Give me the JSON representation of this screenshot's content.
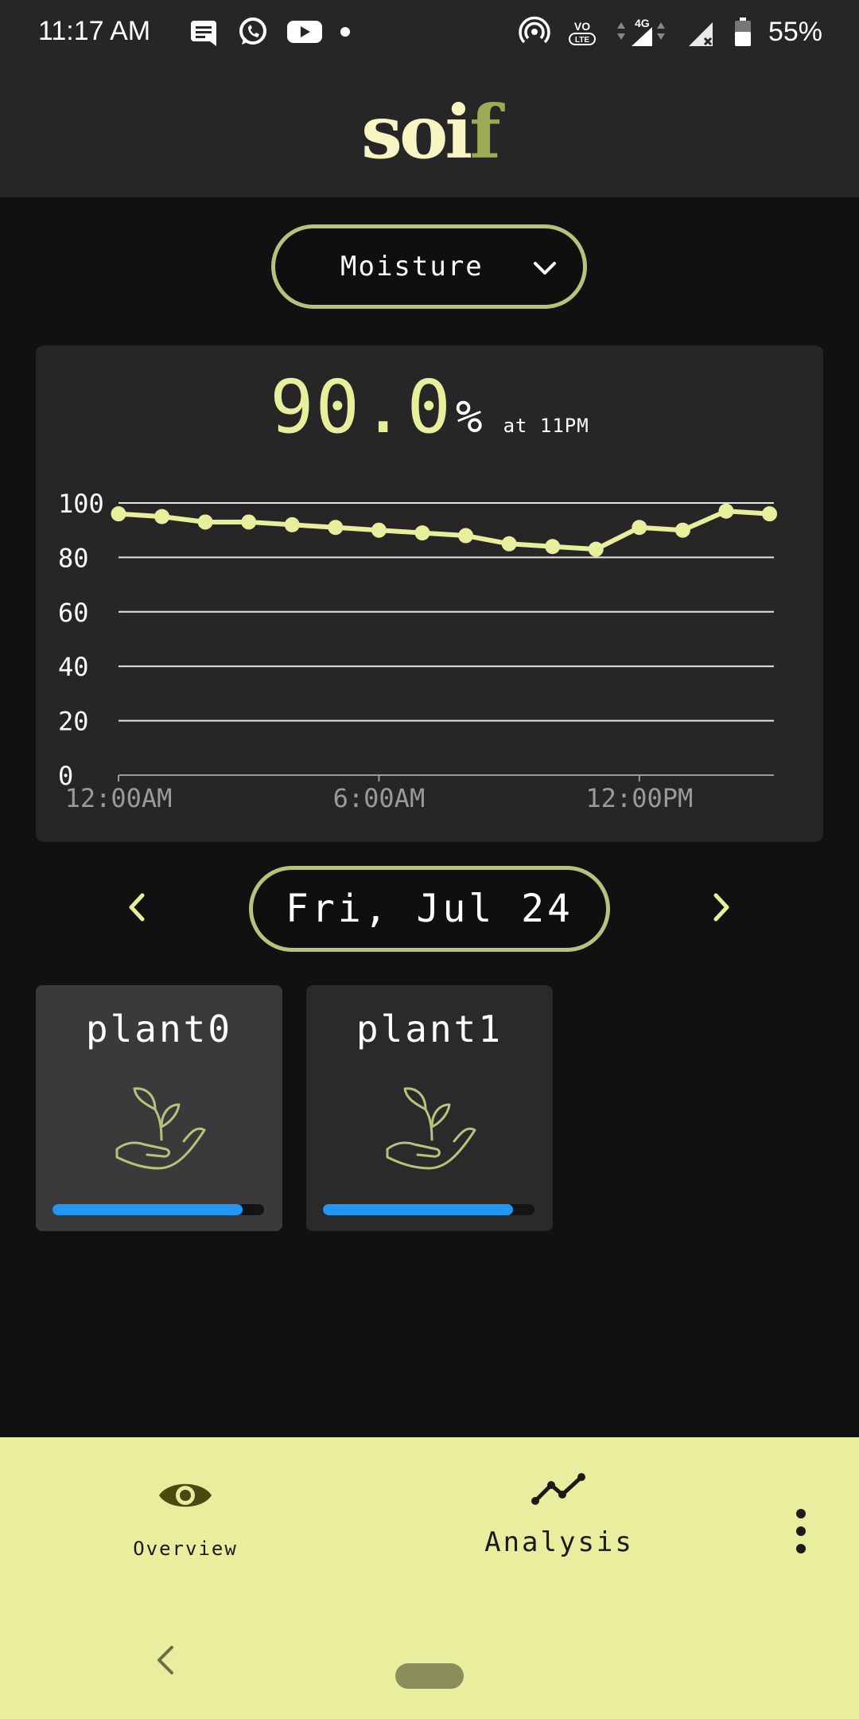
{
  "status_bar": {
    "time": "11:17 AM",
    "battery": "55%",
    "network": "4G",
    "icons": [
      "message-icon",
      "whatsapp-icon",
      "youtube-icon",
      "notification-dot",
      "hotspot-icon",
      "volte-icon",
      "signal-icon",
      "signal-no-sim-icon",
      "battery-icon"
    ]
  },
  "header": {
    "logo_main": "soi",
    "logo_accent": "f"
  },
  "metric_select": {
    "value": "Moisture"
  },
  "reading": {
    "value": "90.0",
    "unit": "%",
    "time": "at 11PM"
  },
  "chart_data": {
    "type": "line",
    "x_labels": [
      "12:00AM",
      "6:00AM",
      "12:00PM"
    ],
    "y_ticks": [
      "100",
      "80",
      "60",
      "40",
      "20",
      "0"
    ],
    "ylim": [
      0,
      100
    ],
    "x_hours": [
      0,
      1,
      2,
      3,
      4,
      5,
      6,
      7,
      8,
      9,
      10,
      11,
      12,
      13,
      14,
      15
    ],
    "values": [
      96,
      95,
      93,
      93,
      92,
      91,
      90,
      89,
      88,
      85,
      84,
      83,
      91,
      90,
      97,
      96
    ],
    "xlim": [
      0,
      15.1
    ],
    "grid": true,
    "line_color": "#e7ee9c"
  },
  "date_nav": {
    "label": "Fri, Jul 24",
    "prev_icon": "chevron-left-icon",
    "next_icon": "chevron-right-icon"
  },
  "plants": [
    {
      "name": "plant0",
      "level": 0.9,
      "icon": "plant-hand-icon"
    },
    {
      "name": "plant1",
      "level": 0.9,
      "icon": "plant-hand-icon"
    }
  ],
  "bottom_nav": {
    "overview_label": "Overview",
    "analysis_label": "Analysis",
    "active": "Analysis"
  },
  "colors": {
    "accent": "#e7ee9c",
    "outline": "#b7c27c",
    "progress": "#2196f3",
    "nav_bg": "#e8ee9e"
  }
}
